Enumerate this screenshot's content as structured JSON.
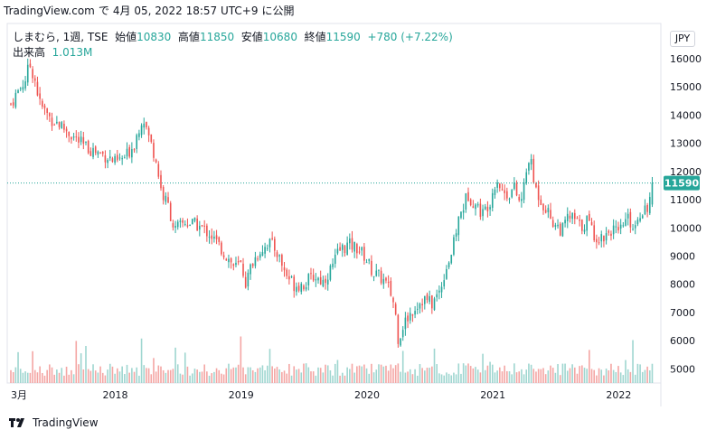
{
  "header": {
    "source": "TradingView.com",
    "sep": "で",
    "datetime": "4月 05, 2022 18:57 UTC+9",
    "published": "に公開"
  },
  "legend": {
    "symbol": "しまむら, 1週, TSE",
    "open_label": "始値",
    "open": "10830",
    "high_label": "高値",
    "high": "11850",
    "low_label": "安値",
    "low": "10680",
    "close_label": "終値",
    "close": "11590",
    "change": "+780 (+7.22%)",
    "volume_label": "出来高",
    "volume": "1.013M"
  },
  "currency": "JPY",
  "last_price_label": "11590",
  "footer": {
    "brand": "TradingView"
  },
  "colors": {
    "up": "#26a69a",
    "down": "#ef5350",
    "vol_up": "#9fd6d0",
    "vol_down": "#f4a6a4",
    "last": "#26a69a"
  },
  "chart_data": {
    "type": "candlestick",
    "interval": "weekly",
    "yaxis": {
      "ticks": [
        5000,
        6000,
        7000,
        8000,
        9000,
        10000,
        11000,
        12000,
        13000,
        14000,
        15000,
        16000
      ],
      "range": [
        4500,
        16800
      ],
      "side": "right"
    },
    "xaxis": {
      "ticks": [
        {
          "label": "3月",
          "year": 2017.17
        },
        {
          "label": "2018",
          "year": 2018.0
        },
        {
          "label": "2019",
          "year": 2019.0
        },
        {
          "label": "2020",
          "year": 2020.0
        },
        {
          "label": "2021",
          "year": 2021.0
        },
        {
          "label": "2022",
          "year": 2022.0
        }
      ],
      "range": [
        2017.17,
        2022.27
      ]
    },
    "last_price": 11590,
    "close_path": [
      [
        2017.17,
        14400
      ],
      [
        2017.22,
        14800
      ],
      [
        2017.28,
        15200
      ],
      [
        2017.32,
        15800
      ],
      [
        2017.36,
        15300
      ],
      [
        2017.4,
        14400
      ],
      [
        2017.48,
        13900
      ],
      [
        2017.55,
        13700
      ],
      [
        2017.65,
        13300
      ],
      [
        2017.75,
        12900
      ],
      [
        2017.85,
        12700
      ],
      [
        2017.95,
        12500
      ],
      [
        2018.0,
        12300
      ],
      [
        2018.08,
        12500
      ],
      [
        2018.15,
        13000
      ],
      [
        2018.22,
        14000
      ],
      [
        2018.26,
        13300
      ],
      [
        2018.32,
        12500
      ],
      [
        2018.37,
        11200
      ],
      [
        2018.42,
        10800
      ],
      [
        2018.47,
        9900
      ],
      [
        2018.55,
        10200
      ],
      [
        2018.65,
        10100
      ],
      [
        2018.75,
        9800
      ],
      [
        2018.85,
        9200
      ],
      [
        2018.95,
        8600
      ],
      [
        2019.0,
        8700
      ],
      [
        2019.04,
        8000
      ],
      [
        2019.08,
        8700
      ],
      [
        2019.15,
        9200
      ],
      [
        2019.22,
        9500
      ],
      [
        2019.28,
        9200
      ],
      [
        2019.35,
        8400
      ],
      [
        2019.42,
        8000
      ],
      [
        2019.5,
        8000
      ],
      [
        2019.58,
        8300
      ],
      [
        2019.65,
        8100
      ],
      [
        2019.72,
        8600
      ],
      [
        2019.78,
        9200
      ],
      [
        2019.85,
        9400
      ],
      [
        2019.92,
        9300
      ],
      [
        2019.98,
        9000
      ],
      [
        2020.05,
        8400
      ],
      [
        2020.12,
        8200
      ],
      [
        2020.18,
        7800
      ],
      [
        2020.22,
        7200
      ],
      [
        2020.25,
        6000
      ],
      [
        2020.28,
        6500
      ],
      [
        2020.32,
        6800
      ],
      [
        2020.38,
        7200
      ],
      [
        2020.45,
        7500
      ],
      [
        2020.52,
        7300
      ],
      [
        2020.58,
        7800
      ],
      [
        2020.62,
        8500
      ],
      [
        2020.68,
        9200
      ],
      [
        2020.72,
        10200
      ],
      [
        2020.76,
        10700
      ],
      [
        2020.8,
        11200
      ],
      [
        2020.85,
        10900
      ],
      [
        2020.92,
        10500
      ],
      [
        2020.98,
        11000
      ],
      [
        2021.03,
        11800
      ],
      [
        2021.07,
        11300
      ],
      [
        2021.12,
        11200
      ],
      [
        2021.17,
        11400
      ],
      [
        2021.22,
        10800
      ],
      [
        2021.26,
        11800
      ],
      [
        2021.29,
        12600
      ],
      [
        2021.33,
        11500
      ],
      [
        2021.38,
        11000
      ],
      [
        2021.42,
        10700
      ],
      [
        2021.48,
        10200
      ],
      [
        2021.55,
        9900
      ],
      [
        2021.6,
        10400
      ],
      [
        2021.65,
        10300
      ],
      [
        2021.7,
        10000
      ],
      [
        2021.75,
        10300
      ],
      [
        2021.8,
        9800
      ],
      [
        2021.85,
        9600
      ],
      [
        2021.9,
        9800
      ],
      [
        2021.95,
        10000
      ],
      [
        2022.0,
        9700
      ],
      [
        2022.04,
        10200
      ],
      [
        2022.08,
        10300
      ],
      [
        2022.12,
        10000
      ],
      [
        2022.16,
        10500
      ],
      [
        2022.2,
        10700
      ],
      [
        2022.24,
        10830
      ],
      [
        2022.27,
        11590
      ]
    ]
  }
}
